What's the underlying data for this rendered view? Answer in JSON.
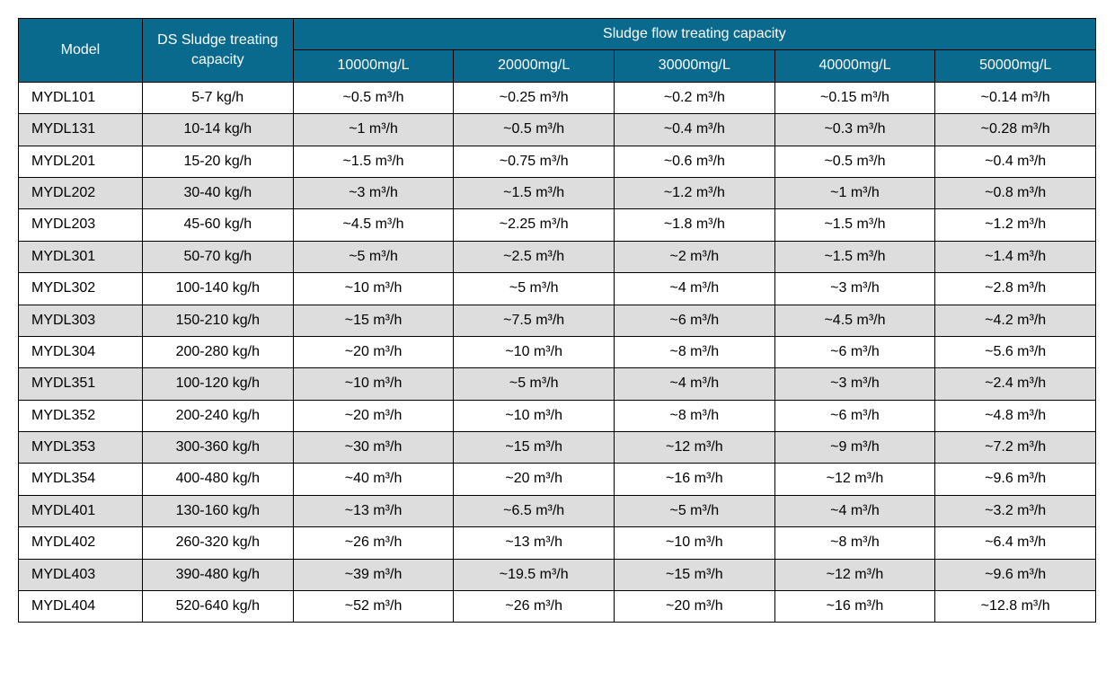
{
  "table": {
    "type": "table",
    "colors": {
      "header_bg": "#0a6a8e",
      "header_fg": "#ffffff",
      "row_even_bg": "#ffffff",
      "row_odd_bg": "#dddddd",
      "border": "#000000",
      "text": "#000000"
    },
    "font_size_pt": 12,
    "headers": {
      "model": "Model",
      "ds": "DS Sludge treating capacity",
      "flow_group": "Sludge flow treating capacity",
      "flow_sub": [
        "10000mg/L",
        "20000mg/L",
        "30000mg/L",
        "40000mg/L",
        "50000mg/L"
      ]
    },
    "col_widths_pct": [
      11.5,
      14,
      14.9,
      14.9,
      14.9,
      14.9,
      14.9
    ],
    "rows": [
      {
        "model": "MYDL101",
        "ds": "5-7 kg/h",
        "flows": [
          "~0.5 m³/h",
          "~0.25 m³/h",
          "~0.2 m³/h",
          "~0.15 m³/h",
          "~0.14 m³/h"
        ]
      },
      {
        "model": "MYDL131",
        "ds": "10-14 kg/h",
        "flows": [
          "~1 m³/h",
          "~0.5 m³/h",
          "~0.4 m³/h",
          "~0.3 m³/h",
          "~0.28 m³/h"
        ]
      },
      {
        "model": "MYDL201",
        "ds": "15-20 kg/h",
        "flows": [
          "~1.5 m³/h",
          "~0.75 m³/h",
          "~0.6 m³/h",
          "~0.5 m³/h",
          "~0.4 m³/h"
        ]
      },
      {
        "model": "MYDL202",
        "ds": "30-40 kg/h",
        "flows": [
          "~3 m³/h",
          "~1.5 m³/h",
          "~1.2 m³/h",
          "~1 m³/h",
          "~0.8 m³/h"
        ]
      },
      {
        "model": "MYDL203",
        "ds": "45-60 kg/h",
        "flows": [
          "~4.5 m³/h",
          "~2.25 m³/h",
          "~1.8 m³/h",
          "~1.5 m³/h",
          "~1.2 m³/h"
        ]
      },
      {
        "model": "MYDL301",
        "ds": "50-70 kg/h",
        "flows": [
          "~5 m³/h",
          "~2.5 m³/h",
          "~2 m³/h",
          "~1.5 m³/h",
          "~1.4 m³/h"
        ]
      },
      {
        "model": "MYDL302",
        "ds": "100-140 kg/h",
        "flows": [
          "~10 m³/h",
          "~5 m³/h",
          "~4 m³/h",
          "~3 m³/h",
          "~2.8 m³/h"
        ]
      },
      {
        "model": "MYDL303",
        "ds": "150-210 kg/h",
        "flows": [
          "~15 m³/h",
          "~7.5 m³/h",
          "~6 m³/h",
          "~4.5 m³/h",
          "~4.2 m³/h"
        ]
      },
      {
        "model": "MYDL304",
        "ds": "200-280 kg/h",
        "flows": [
          "~20 m³/h",
          "~10 m³/h",
          "~8 m³/h",
          "~6 m³/h",
          "~5.6 m³/h"
        ]
      },
      {
        "model": "MYDL351",
        "ds": "100-120 kg/h",
        "flows": [
          "~10 m³/h",
          "~5 m³/h",
          "~4 m³/h",
          "~3 m³/h",
          "~2.4 m³/h"
        ]
      },
      {
        "model": "MYDL352",
        "ds": "200-240 kg/h",
        "flows": [
          "~20 m³/h",
          "~10 m³/h",
          "~8 m³/h",
          "~6 m³/h",
          "~4.8 m³/h"
        ]
      },
      {
        "model": "MYDL353",
        "ds": "300-360 kg/h",
        "flows": [
          "~30 m³/h",
          "~15 m³/h",
          "~12 m³/h",
          "~9 m³/h",
          "~7.2 m³/h"
        ]
      },
      {
        "model": "MYDL354",
        "ds": "400-480 kg/h",
        "flows": [
          "~40 m³/h",
          "~20 m³/h",
          "~16 m³/h",
          "~12 m³/h",
          "~9.6 m³/h"
        ]
      },
      {
        "model": "MYDL401",
        "ds": "130-160 kg/h",
        "flows": [
          "~13 m³/h",
          "~6.5 m³/h",
          "~5 m³/h",
          "~4 m³/h",
          "~3.2 m³/h"
        ]
      },
      {
        "model": "MYDL402",
        "ds": "260-320 kg/h",
        "flows": [
          "~26 m³/h",
          "~13 m³/h",
          "~10 m³/h",
          "~8 m³/h",
          "~6.4 m³/h"
        ]
      },
      {
        "model": "MYDL403",
        "ds": "390-480 kg/h",
        "flows": [
          "~39 m³/h",
          "~19.5 m³/h",
          "~15 m³/h",
          "~12 m³/h",
          "~9.6 m³/h"
        ]
      },
      {
        "model": "MYDL404",
        "ds": "520-640 kg/h",
        "flows": [
          "~52 m³/h",
          "~26 m³/h",
          "~20 m³/h",
          "~16 m³/h",
          "~12.8 m³/h"
        ]
      }
    ]
  }
}
